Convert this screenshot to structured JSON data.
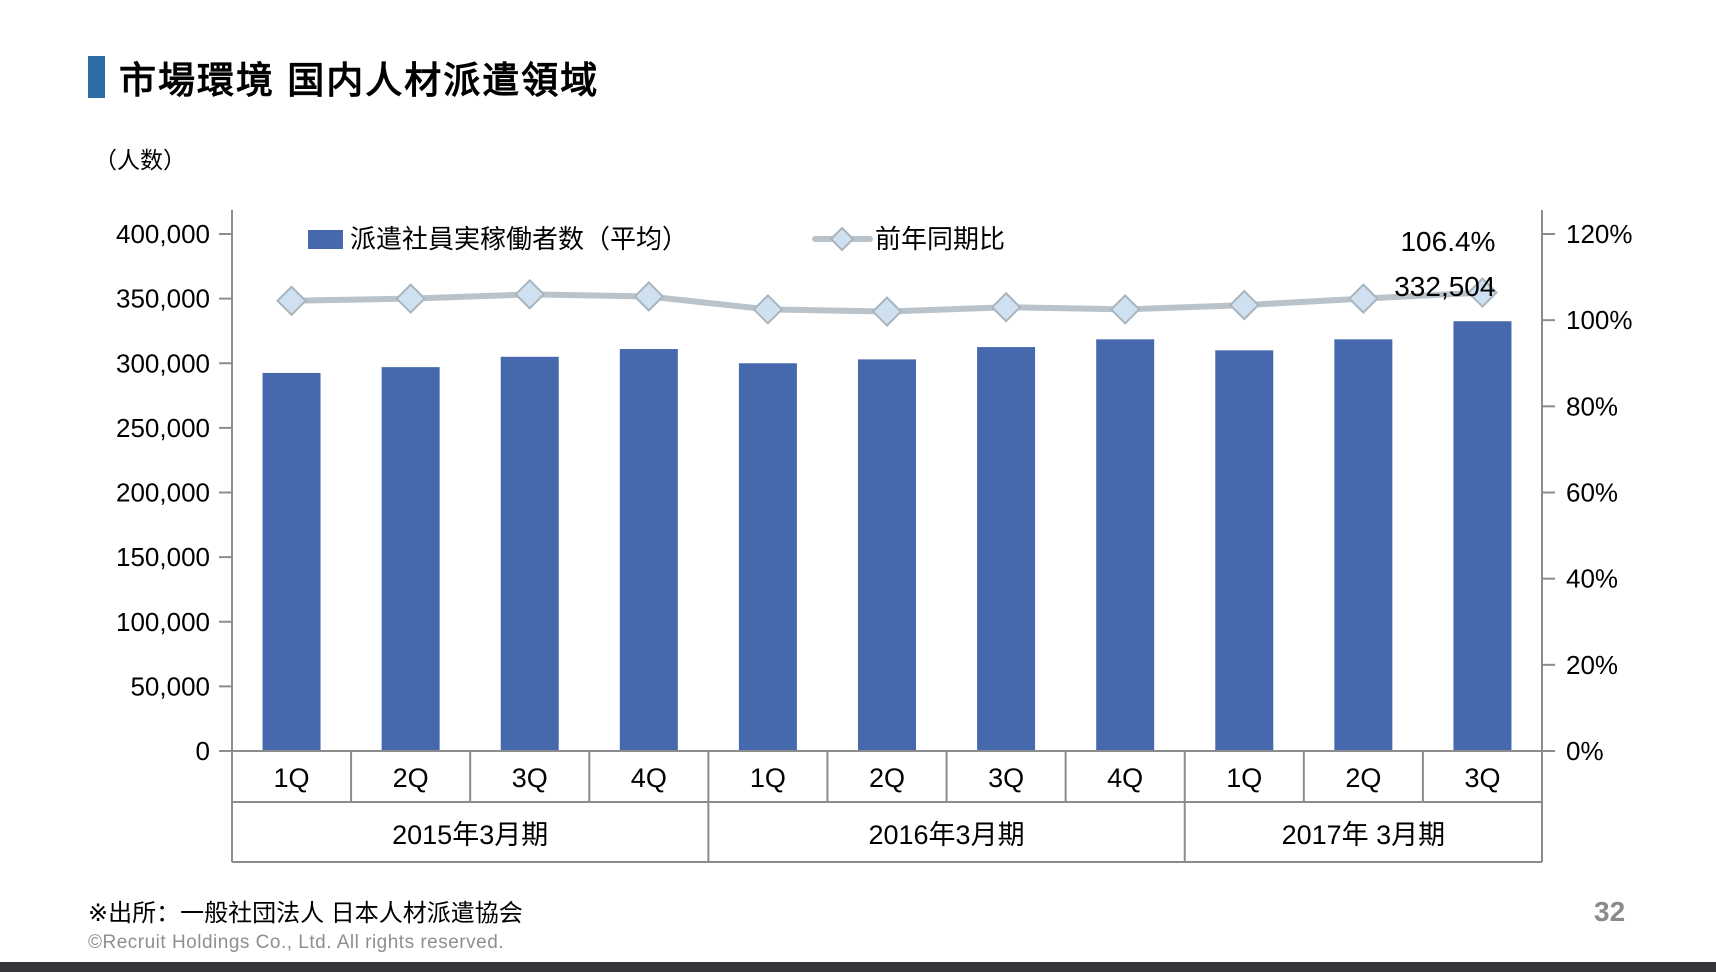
{
  "slide": {
    "title": "市場環境 国内人材派遣領域",
    "unit_label": "（人数）",
    "source_note": "※出所：一般社団法人 日本人材派遣協会",
    "copyright": "©Recruit Holdings Co., Ltd. All rights reserved.",
    "page_number": "32"
  },
  "chart_data": {
    "type": "bar",
    "subtype": "bar-line-combo",
    "categories": [
      "1Q",
      "2Q",
      "3Q",
      "4Q",
      "1Q",
      "2Q",
      "3Q",
      "4Q",
      "1Q",
      "2Q",
      "3Q"
    ],
    "year_groups": [
      {
        "label": "2015年3月期",
        "quarters": 4
      },
      {
        "label": "2016年3月期",
        "quarters": 4
      },
      {
        "label": "2017年 3月期",
        "quarters": 3
      }
    ],
    "series": [
      {
        "name": "派遣社員実稼働者数（平均）",
        "type": "bar",
        "axis": "left",
        "values": [
          292500,
          297000,
          305000,
          311000,
          300000,
          303000,
          312500,
          318500,
          310000,
          318500,
          332504
        ]
      },
      {
        "name": "前年同期比",
        "type": "line",
        "axis": "right",
        "values": [
          104.5,
          105.0,
          106.0,
          105.5,
          102.5,
          102.0,
          103.0,
          102.5,
          103.5,
          105.0,
          106.4
        ]
      }
    ],
    "annotations": {
      "last_yoy": "106.4%",
      "last_value": "332,504"
    },
    "left_axis": {
      "min": 0,
      "max": 400000,
      "step": 50000,
      "tick_labels": [
        "400,000",
        "350,000",
        "300,000",
        "250,000",
        "200,000",
        "150,000",
        "100,000",
        "50,000",
        "0"
      ]
    },
    "right_axis": {
      "min": 0,
      "max": 120,
      "step": 20,
      "tick_labels": [
        "120%",
        "100%",
        "80%",
        "60%",
        "40%",
        "20%",
        "0%"
      ]
    },
    "legend_position": "top",
    "grid": false,
    "colors": {
      "bar": "#4669ad",
      "line": "#bac3c9",
      "diamond_fill": "#cfe0f1",
      "diamond_stroke": "#a9b5bd",
      "axis_line": "#8c8c8c",
      "table_line": "#8c8c8c",
      "text": "#000000",
      "title_accent": "#2d6da6",
      "bottom_bar": "#35353b"
    }
  }
}
